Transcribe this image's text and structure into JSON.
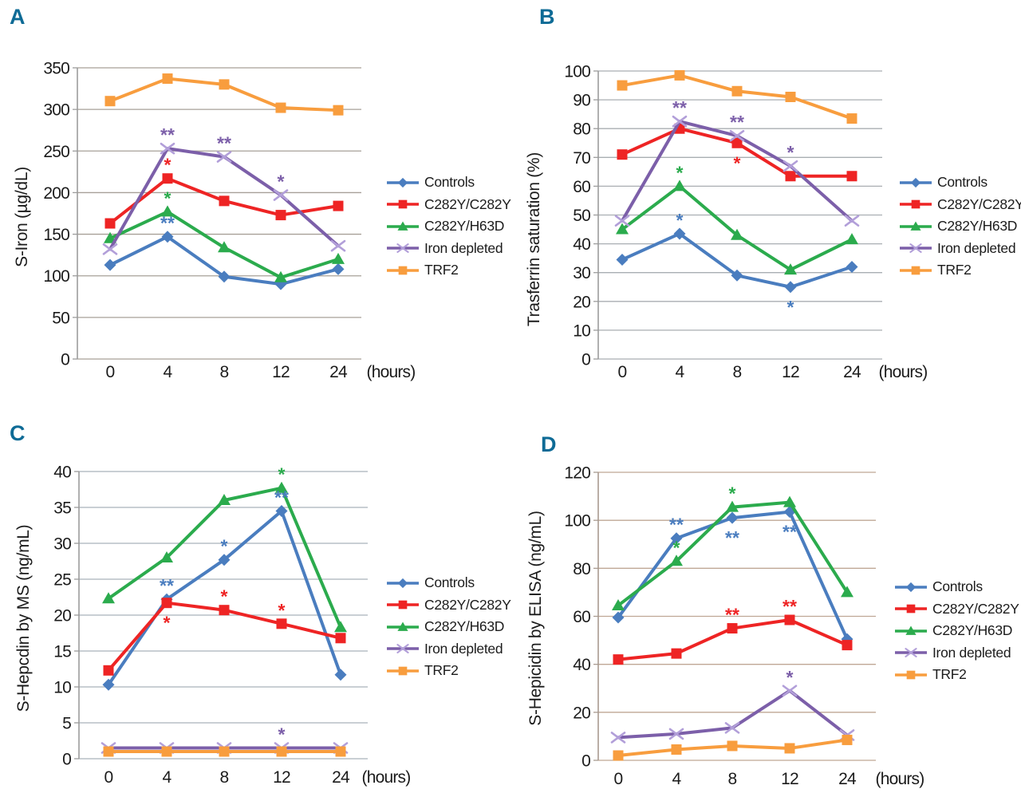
{
  "series_styles": [
    {
      "name": "Controls",
      "color": "#4a7dbf",
      "marker": "diamond"
    },
    {
      "name": "C282Y/C282Y",
      "color": "#ee2424",
      "marker": "square"
    },
    {
      "name": "C282Y/H63D",
      "color": "#2bab4d",
      "marker": "triangle"
    },
    {
      "name": "Iron depleted",
      "color": "#7c5fa9",
      "marker": "x",
      "marker_color": "#b29fd9"
    },
    {
      "name": "TRF2",
      "color": "#f89d3e",
      "marker": "square"
    }
  ],
  "panel_letter_color": "#0e6b96",
  "chart_data": [
    {
      "panel_label": "A",
      "type": "line",
      "ylabel": "S-Iron (µg/dL)",
      "x_axis_suffix": "(hours)",
      "categories": [
        "0",
        "4",
        "8",
        "12",
        "24"
      ],
      "ylim": [
        0,
        350
      ],
      "ystep": 50,
      "grid_on": true,
      "grid_color": "#a7a098",
      "legend_position": "right",
      "series": [
        {
          "name": "Controls",
          "values": [
            113,
            147,
            99,
            90,
            108
          ]
        },
        {
          "name": "C282Y/C282Y",
          "values": [
            163,
            217,
            190,
            173,
            184
          ]
        },
        {
          "name": "C282Y/H63D",
          "values": [
            145,
            177,
            134,
            98,
            120
          ]
        },
        {
          "name": "Iron depleted",
          "values": [
            132,
            253,
            243,
            197,
            136
          ]
        },
        {
          "name": "TRF2",
          "values": [
            310,
            337,
            330,
            302,
            299
          ]
        }
      ],
      "annotations": [
        {
          "series": "Iron depleted",
          "x_index": 1,
          "text": "**",
          "position": "above"
        },
        {
          "series": "Iron depleted",
          "x_index": 2,
          "text": "**",
          "position": "above"
        },
        {
          "series": "Iron depleted",
          "x_index": 3,
          "text": "*",
          "position": "above"
        },
        {
          "series": "C282Y/C282Y",
          "x_index": 1,
          "text": "*",
          "position": "above"
        },
        {
          "series": "C282Y/H63D",
          "x_index": 1,
          "text": "*",
          "position": "above"
        },
        {
          "series": "Controls",
          "x_index": 1,
          "text": "**",
          "position": "above"
        }
      ]
    },
    {
      "panel_label": "B",
      "type": "line",
      "ylabel": "Trasferrin saturation (%)",
      "x_axis_suffix": "(hours)",
      "categories": [
        "0",
        "4",
        "8",
        "12",
        "24"
      ],
      "ylim": [
        0,
        100
      ],
      "ystep": 10,
      "grid_on": true,
      "grid_color": "#a9aeb2",
      "legend_position": "right",
      "series": [
        {
          "name": "Controls",
          "values": [
            34.5,
            43.5,
            29,
            25,
            32
          ]
        },
        {
          "name": "C282Y/C282Y",
          "values": [
            71,
            80,
            75,
            63.5,
            63.5
          ]
        },
        {
          "name": "C282Y/H63D",
          "values": [
            45,
            60,
            43,
            31,
            41.5
          ]
        },
        {
          "name": "Iron depleted",
          "values": [
            48,
            82.5,
            77.5,
            67,
            48
          ]
        },
        {
          "name": "TRF2",
          "values": [
            95,
            98.5,
            93,
            91,
            83.5
          ]
        }
      ],
      "annotations": [
        {
          "series": "Iron depleted",
          "x_index": 1,
          "text": "**",
          "position": "above"
        },
        {
          "series": "Iron depleted",
          "x_index": 2,
          "text": "**",
          "position": "above"
        },
        {
          "series": "Iron depleted",
          "x_index": 3,
          "text": "*",
          "position": "above"
        },
        {
          "series": "C282Y/H63D",
          "x_index": 1,
          "text": "*",
          "position": "above"
        },
        {
          "series": "Controls",
          "x_index": 1,
          "text": "*",
          "position": "above"
        },
        {
          "series": "C282Y/C282Y",
          "x_index": 2,
          "text": "*",
          "position": "below"
        },
        {
          "series": "Controls",
          "x_index": 3,
          "text": "*",
          "position": "below"
        }
      ]
    },
    {
      "panel_label": "C",
      "type": "line",
      "ylabel": "S-Hepcdin by MS (ng/mL)",
      "x_axis_suffix": "(hours)",
      "categories": [
        "0",
        "4",
        "8",
        "12",
        "24"
      ],
      "ylim": [
        0,
        40
      ],
      "ystep": 5,
      "grid_on": true,
      "grid_color": "#a9b2ba",
      "legend_position": "right",
      "series": [
        {
          "name": "Controls",
          "values": [
            10.3,
            22.2,
            27.7,
            34.5,
            11.7
          ]
        },
        {
          "name": "C282Y/C282Y",
          "values": [
            12.3,
            21.7,
            20.7,
            18.8,
            16.8
          ]
        },
        {
          "name": "C282Y/H63D",
          "values": [
            22.3,
            28,
            36,
            37.7,
            18.3
          ]
        },
        {
          "name": "Iron depleted",
          "values": [
            1.5,
            1.5,
            1.5,
            1.5,
            1.5
          ]
        },
        {
          "name": "TRF2",
          "values": [
            1,
            1,
            1,
            1,
            1
          ]
        }
      ],
      "annotations": [
        {
          "series": "Controls",
          "x_index": 1,
          "text": "**",
          "position": "above"
        },
        {
          "series": "Controls",
          "x_index": 2,
          "text": "*",
          "position": "above"
        },
        {
          "series": "Controls",
          "x_index": 3,
          "text": "**",
          "position": "above"
        },
        {
          "series": "C282Y/C282Y",
          "x_index": 1,
          "text": "*",
          "position": "below"
        },
        {
          "series": "C282Y/C282Y",
          "x_index": 2,
          "text": "*",
          "position": "above"
        },
        {
          "series": "C282Y/C282Y",
          "x_index": 3,
          "text": "*",
          "position": "above"
        },
        {
          "series": "C282Y/H63D",
          "x_index": 3,
          "text": "*",
          "position": "above"
        },
        {
          "series": "Iron depleted",
          "x_index": 3,
          "text": "*",
          "position": "above"
        }
      ]
    },
    {
      "panel_label": "D",
      "type": "line",
      "ylabel": "S-Hepicidin by ELISA (ng/mL)",
      "x_axis_suffix": "(hours)",
      "categories": [
        "0",
        "4",
        "8",
        "12",
        "24"
      ],
      "ylim": [
        0,
        120
      ],
      "ystep": 20,
      "grid_on": true,
      "grid_color": "#bfa795",
      "legend_position": "right",
      "series": [
        {
          "name": "Controls",
          "values": [
            59.5,
            92.5,
            101,
            103.5,
            50.5
          ]
        },
        {
          "name": "C282Y/C282Y",
          "values": [
            42,
            44.5,
            55,
            58.5,
            48
          ]
        },
        {
          "name": "C282Y/H63D",
          "values": [
            64.5,
            83,
            105.5,
            107.5,
            70
          ]
        },
        {
          "name": "Iron depleted",
          "values": [
            9.5,
            11,
            13.5,
            29,
            10.5
          ]
        },
        {
          "name": "TRF2",
          "values": [
            2,
            4.5,
            6,
            5,
            8.5
          ]
        }
      ],
      "annotations": [
        {
          "series": "Controls",
          "x_index": 1,
          "text": "**",
          "position": "above"
        },
        {
          "series": "Controls",
          "x_index": 2,
          "text": "**",
          "position": "below"
        },
        {
          "series": "Controls",
          "x_index": 3,
          "text": "**",
          "position": "below"
        },
        {
          "series": "C282Y/H63D",
          "x_index": 1,
          "text": "*",
          "position": "above"
        },
        {
          "series": "C282Y/H63D",
          "x_index": 2,
          "text": "*",
          "position": "above"
        },
        {
          "series": "C282Y/C282Y",
          "x_index": 2,
          "text": "**",
          "position": "above"
        },
        {
          "series": "C282Y/C282Y",
          "x_index": 3,
          "text": "**",
          "position": "above"
        },
        {
          "series": "Iron depleted",
          "x_index": 3,
          "text": "*",
          "position": "above"
        }
      ]
    }
  ]
}
